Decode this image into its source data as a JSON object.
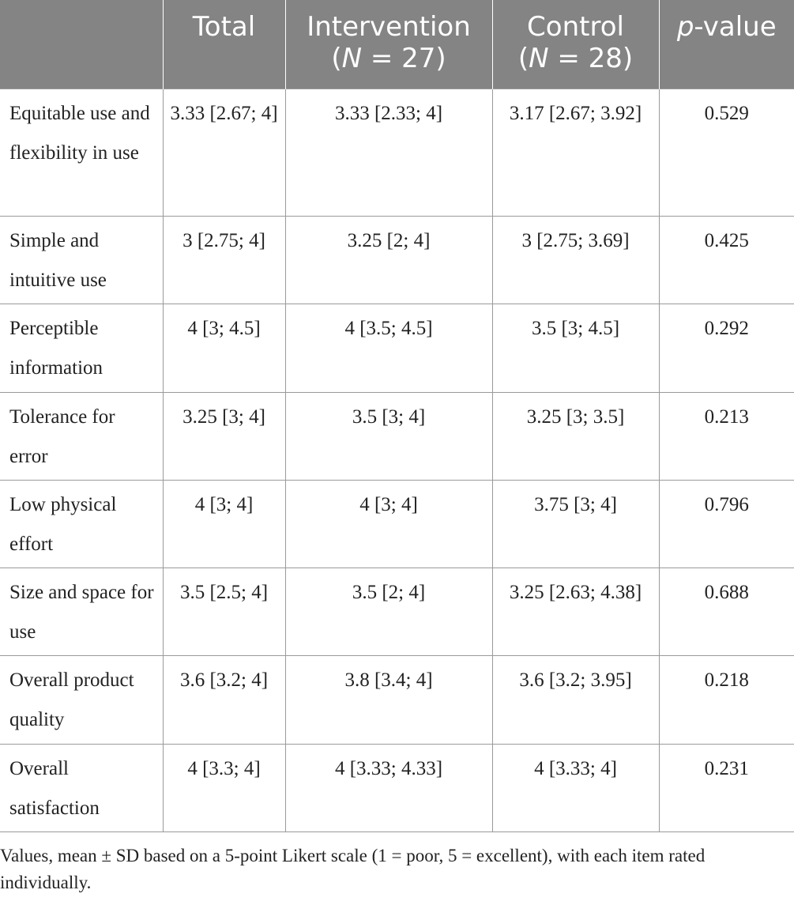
{
  "table": {
    "headers": {
      "blank": "",
      "total": "Total",
      "intervention": {
        "label": "Intervention",
        "n_open": "(",
        "n_italic": "N",
        "n_rest": " = 27)"
      },
      "control": {
        "label": "Control",
        "n_open": "(",
        "n_italic": "N",
        "n_rest": " = 28)"
      },
      "pvalue": {
        "italic": "p",
        "rest": "-value"
      }
    },
    "rows": [
      {
        "label": "Equitable use and flexibility in use",
        "total": "3.33 [2.67; 4]",
        "intervention": "3.33 [2.33; 4]",
        "control": "3.17 [2.67; 3.92]",
        "p": "0.529"
      },
      {
        "label": "Simple and intuitive use",
        "total": "3 [2.75; 4]",
        "intervention": "3.25 [2; 4]",
        "control": "3 [2.75; 3.69]",
        "p": "0.425"
      },
      {
        "label": "Perceptible information",
        "total": "4 [3; 4.5]",
        "intervention": "4 [3.5; 4.5]",
        "control": "3.5 [3; 4.5]",
        "p": "0.292"
      },
      {
        "label": "Tolerance for error",
        "total": "3.25 [3; 4]",
        "intervention": "3.5 [3; 4]",
        "control": "3.25 [3; 3.5]",
        "p": "0.213"
      },
      {
        "label": "Low physical effort",
        "total": "4 [3; 4]",
        "intervention": "4 [3; 4]",
        "control": "3.75 [3; 4]",
        "p": "0.796"
      },
      {
        "label": "Size and space for use",
        "total": "3.5 [2.5; 4]",
        "intervention": "3.5 [2; 4]",
        "control": "3.25 [2.63; 4.38]",
        "p": "0.688"
      },
      {
        "label": "Overall product quality",
        "total": "3.6 [3.2; 4]",
        "intervention": "3.8 [3.4; 4]",
        "control": "3.6 [3.2; 3.95]",
        "p": "0.218"
      },
      {
        "label": "Overall satisfaction",
        "total": "4 [3.3; 4]",
        "intervention": "4 [3.33; 4.33]",
        "control": "4 [3.33; 4]",
        "p": "0.231"
      }
    ]
  },
  "footnote": "Values, mean ± SD based on a 5-point Likert scale (1 = poor, 5 = excellent), with each item rated individually."
}
